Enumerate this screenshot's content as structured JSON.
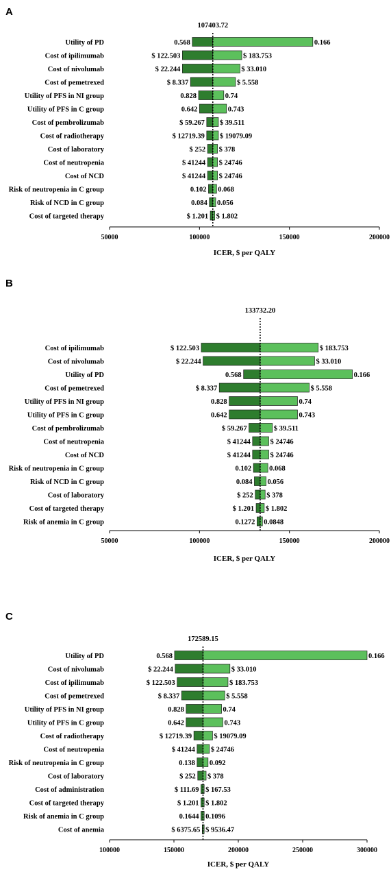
{
  "chart_data": [
    {
      "type": "bar",
      "panel": "A",
      "base_label": "107403.72",
      "base": 107403.72,
      "xlabel": "ICER, $ per QALY",
      "xlim": [
        50000,
        200000
      ],
      "xticks": [
        "50000",
        "100000",
        "150000",
        "200000"
      ],
      "colors": {
        "low": "#2e7d2e",
        "high": "#5cc05c"
      },
      "rows": [
        {
          "label": "Utility of PD",
          "left": 96000,
          "right": 163000,
          "left_label": "0.568",
          "right_label": "0.166"
        },
        {
          "label": "Cost of ipilimumab",
          "left": 90500,
          "right": 123500,
          "left_label": "$ 122.503",
          "right_label": "$ 183.753"
        },
        {
          "label": "Cost of nivolumab",
          "left": 90500,
          "right": 122500,
          "left_label": "$ 22.244",
          "right_label": "$ 33.010"
        },
        {
          "label": "Cost of pemetrexed",
          "left": 95000,
          "right": 120000,
          "left_label": "$ 8.337",
          "right_label": "$ 5.558"
        },
        {
          "label": "Utility of PFS in NI group",
          "left": 99500,
          "right": 113500,
          "left_label": "0.828",
          "right_label": "0.74"
        },
        {
          "label": "Utility of PFS in C group",
          "left": 100000,
          "right": 115000,
          "left_label": "0.642",
          "right_label": "0.743"
        },
        {
          "label": "Cost of pembrolizumab",
          "left": 104000,
          "right": 110500,
          "left_label": "$ 59.267",
          "right_label": "$ 39.511"
        },
        {
          "label": "Cost of radiotherapy",
          "left": 104000,
          "right": 110500,
          "left_label": "$ 12719.39",
          "right_label": "$ 19079.09"
        },
        {
          "label": "Cost of laboratory",
          "left": 104500,
          "right": 110000,
          "left_label": "$ 252",
          "right_label": "$ 378"
        },
        {
          "label": "Cost of neutropenia",
          "left": 104500,
          "right": 110000,
          "left_label": "$ 41244",
          "right_label": "$ 24746"
        },
        {
          "label": "Cost of NCD",
          "left": 104500,
          "right": 110000,
          "left_label": "$ 41244",
          "right_label": "$ 24746"
        },
        {
          "label": "Risk of neutropenia in C group",
          "left": 105000,
          "right": 109500,
          "left_label": "0.102",
          "right_label": "0.068"
        },
        {
          "label": "Risk of NCD  in C group",
          "left": 105500,
          "right": 109000,
          "left_label": "0.084",
          "right_label": "0.056"
        },
        {
          "label": "Cost of targeted therapy",
          "left": 106000,
          "right": 108500,
          "left_label": "$ 1.201",
          "right_label": "$ 1.802"
        }
      ]
    },
    {
      "type": "bar",
      "panel": "B",
      "base_label": "133732.20",
      "base": 133732.2,
      "xlabel": "ICER,  $ per QALY",
      "xlim": [
        50000,
        200000
      ],
      "xticks": [
        "50000",
        "100000",
        "150000",
        "200000"
      ],
      "colors": {
        "low": "#2e7d2e",
        "high": "#5cc05c"
      },
      "rows": [
        {
          "label": "Cost of ipilimumab",
          "left": 101000,
          "right": 166000,
          "left_label": "$ 122.503",
          "right_label": "$ 183.753"
        },
        {
          "label": "Cost of nivolumab",
          "left": 102000,
          "right": 164000,
          "left_label": "$ 22.244",
          "right_label": "$ 33.010"
        },
        {
          "label": "Utility of PD",
          "left": 124500,
          "right": 185000,
          "left_label": "0.568",
          "right_label": "0.166"
        },
        {
          "label": "Cost of pemetrexed",
          "left": 111000,
          "right": 161000,
          "left_label": "$ 8.337",
          "right_label": "$ 5.558"
        },
        {
          "label": "Utility of PFS in NI group",
          "left": 116500,
          "right": 154500,
          "left_label": "0.828",
          "right_label": "0.74"
        },
        {
          "label": "Utility of PFS in C group",
          "left": 116500,
          "right": 154500,
          "left_label": "0.642",
          "right_label": "0.743"
        },
        {
          "label": "Cost of pembrolizumab",
          "left": 127500,
          "right": 140500,
          "left_label": "$ 59.267",
          "right_label": "$ 39.511"
        },
        {
          "label": "Cost of neutropenia",
          "left": 129500,
          "right": 138500,
          "left_label": "$ 41244",
          "right_label": "$ 24746"
        },
        {
          "label": "Cost of NCD",
          "left": 129500,
          "right": 138500,
          "left_label": "$ 41244",
          "right_label": "$ 24746"
        },
        {
          "label": "Risk of neutropenia in C group",
          "left": 130000,
          "right": 138000,
          "left_label": "0.102",
          "right_label": "0.068"
        },
        {
          "label": "Risk of NCD in C group",
          "left": 130500,
          "right": 137000,
          "left_label": "0.084",
          "right_label": "0.056"
        },
        {
          "label": "Cost of laboratory",
          "left": 131000,
          "right": 136500,
          "left_label": "$ 252",
          "right_label": "$ 378"
        },
        {
          "label": "Cost of targeted therapy",
          "left": 131500,
          "right": 136000,
          "left_label": "$ 1.201",
          "right_label": "$ 1.802"
        },
        {
          "label": "Risk of anemia in C group",
          "left": 132000,
          "right": 135000,
          "left_label": "0.1272",
          "right_label": "0.0848"
        }
      ]
    },
    {
      "type": "bar",
      "panel": "C",
      "base_label": "172589.15",
      "base": 172589.15,
      "xlabel": "ICER, $ per QALY",
      "xlim": [
        100000,
        300000
      ],
      "xticks": [
        "100000",
        "150000",
        "200000",
        "250000",
        "300000"
      ],
      "colors": {
        "low": "#2e7d2e",
        "high": "#5cc05c"
      },
      "rows": [
        {
          "label": "Utility of PD",
          "left": 150500,
          "right": 300000,
          "left_label": "0.568",
          "right_label": "0.166"
        },
        {
          "label": "Cost of nivolumab",
          "left": 151000,
          "right": 193500,
          "left_label": "$ 22.244",
          "right_label": "$ 33.010"
        },
        {
          "label": "Cost of ipilimumab",
          "left": 152500,
          "right": 192000,
          "left_label": "$ 122.503",
          "right_label": "$ 183.753"
        },
        {
          "label": "Cost of pemetrexed",
          "left": 156000,
          "right": 189500,
          "left_label": "$ 8.337",
          "right_label": "$ 5.558"
        },
        {
          "label": "Utility of PFS in NI group",
          "left": 159500,
          "right": 187000,
          "left_label": "0.828",
          "right_label": "0.74"
        },
        {
          "label": "Utility of PFS in C group",
          "left": 159500,
          "right": 188000,
          "left_label": "0.642",
          "right_label": "0.743"
        },
        {
          "label": "Cost of radiotherapy",
          "left": 165500,
          "right": 180000,
          "left_label": "$ 12719.39",
          "right_label": "$ 19079.09"
        },
        {
          "label": "Cost of neutropenia",
          "left": 168000,
          "right": 177500,
          "left_label": "$ 41244",
          "right_label": "$ 24746"
        },
        {
          "label": "Risk of neutropenia in C group",
          "left": 168000,
          "right": 176500,
          "left_label": "0.138",
          "right_label": "0.092"
        },
        {
          "label": "Cost of laboratory",
          "left": 168500,
          "right": 175000,
          "left_label": "$ 252",
          "right_label": "$ 378"
        },
        {
          "label": "Cost of administration",
          "left": 171000,
          "right": 173500,
          "left_label": "$ 111.69",
          "right_label": "$ 167.53"
        },
        {
          "label": "Cost of targeted therapy",
          "left": 171000,
          "right": 173500,
          "left_label": "$ 1.201",
          "right_label": "$ 1.802"
        },
        {
          "label": "Risk of anemia in C group",
          "left": 171000,
          "right": 173500,
          "left_label": "0.1644",
          "right_label": "0.1096"
        },
        {
          "label": "Cost of anemia",
          "left": 172000,
          "right": 173500,
          "left_label": "$ 6375.65",
          "right_label": "$ 9536.47"
        }
      ]
    }
  ]
}
